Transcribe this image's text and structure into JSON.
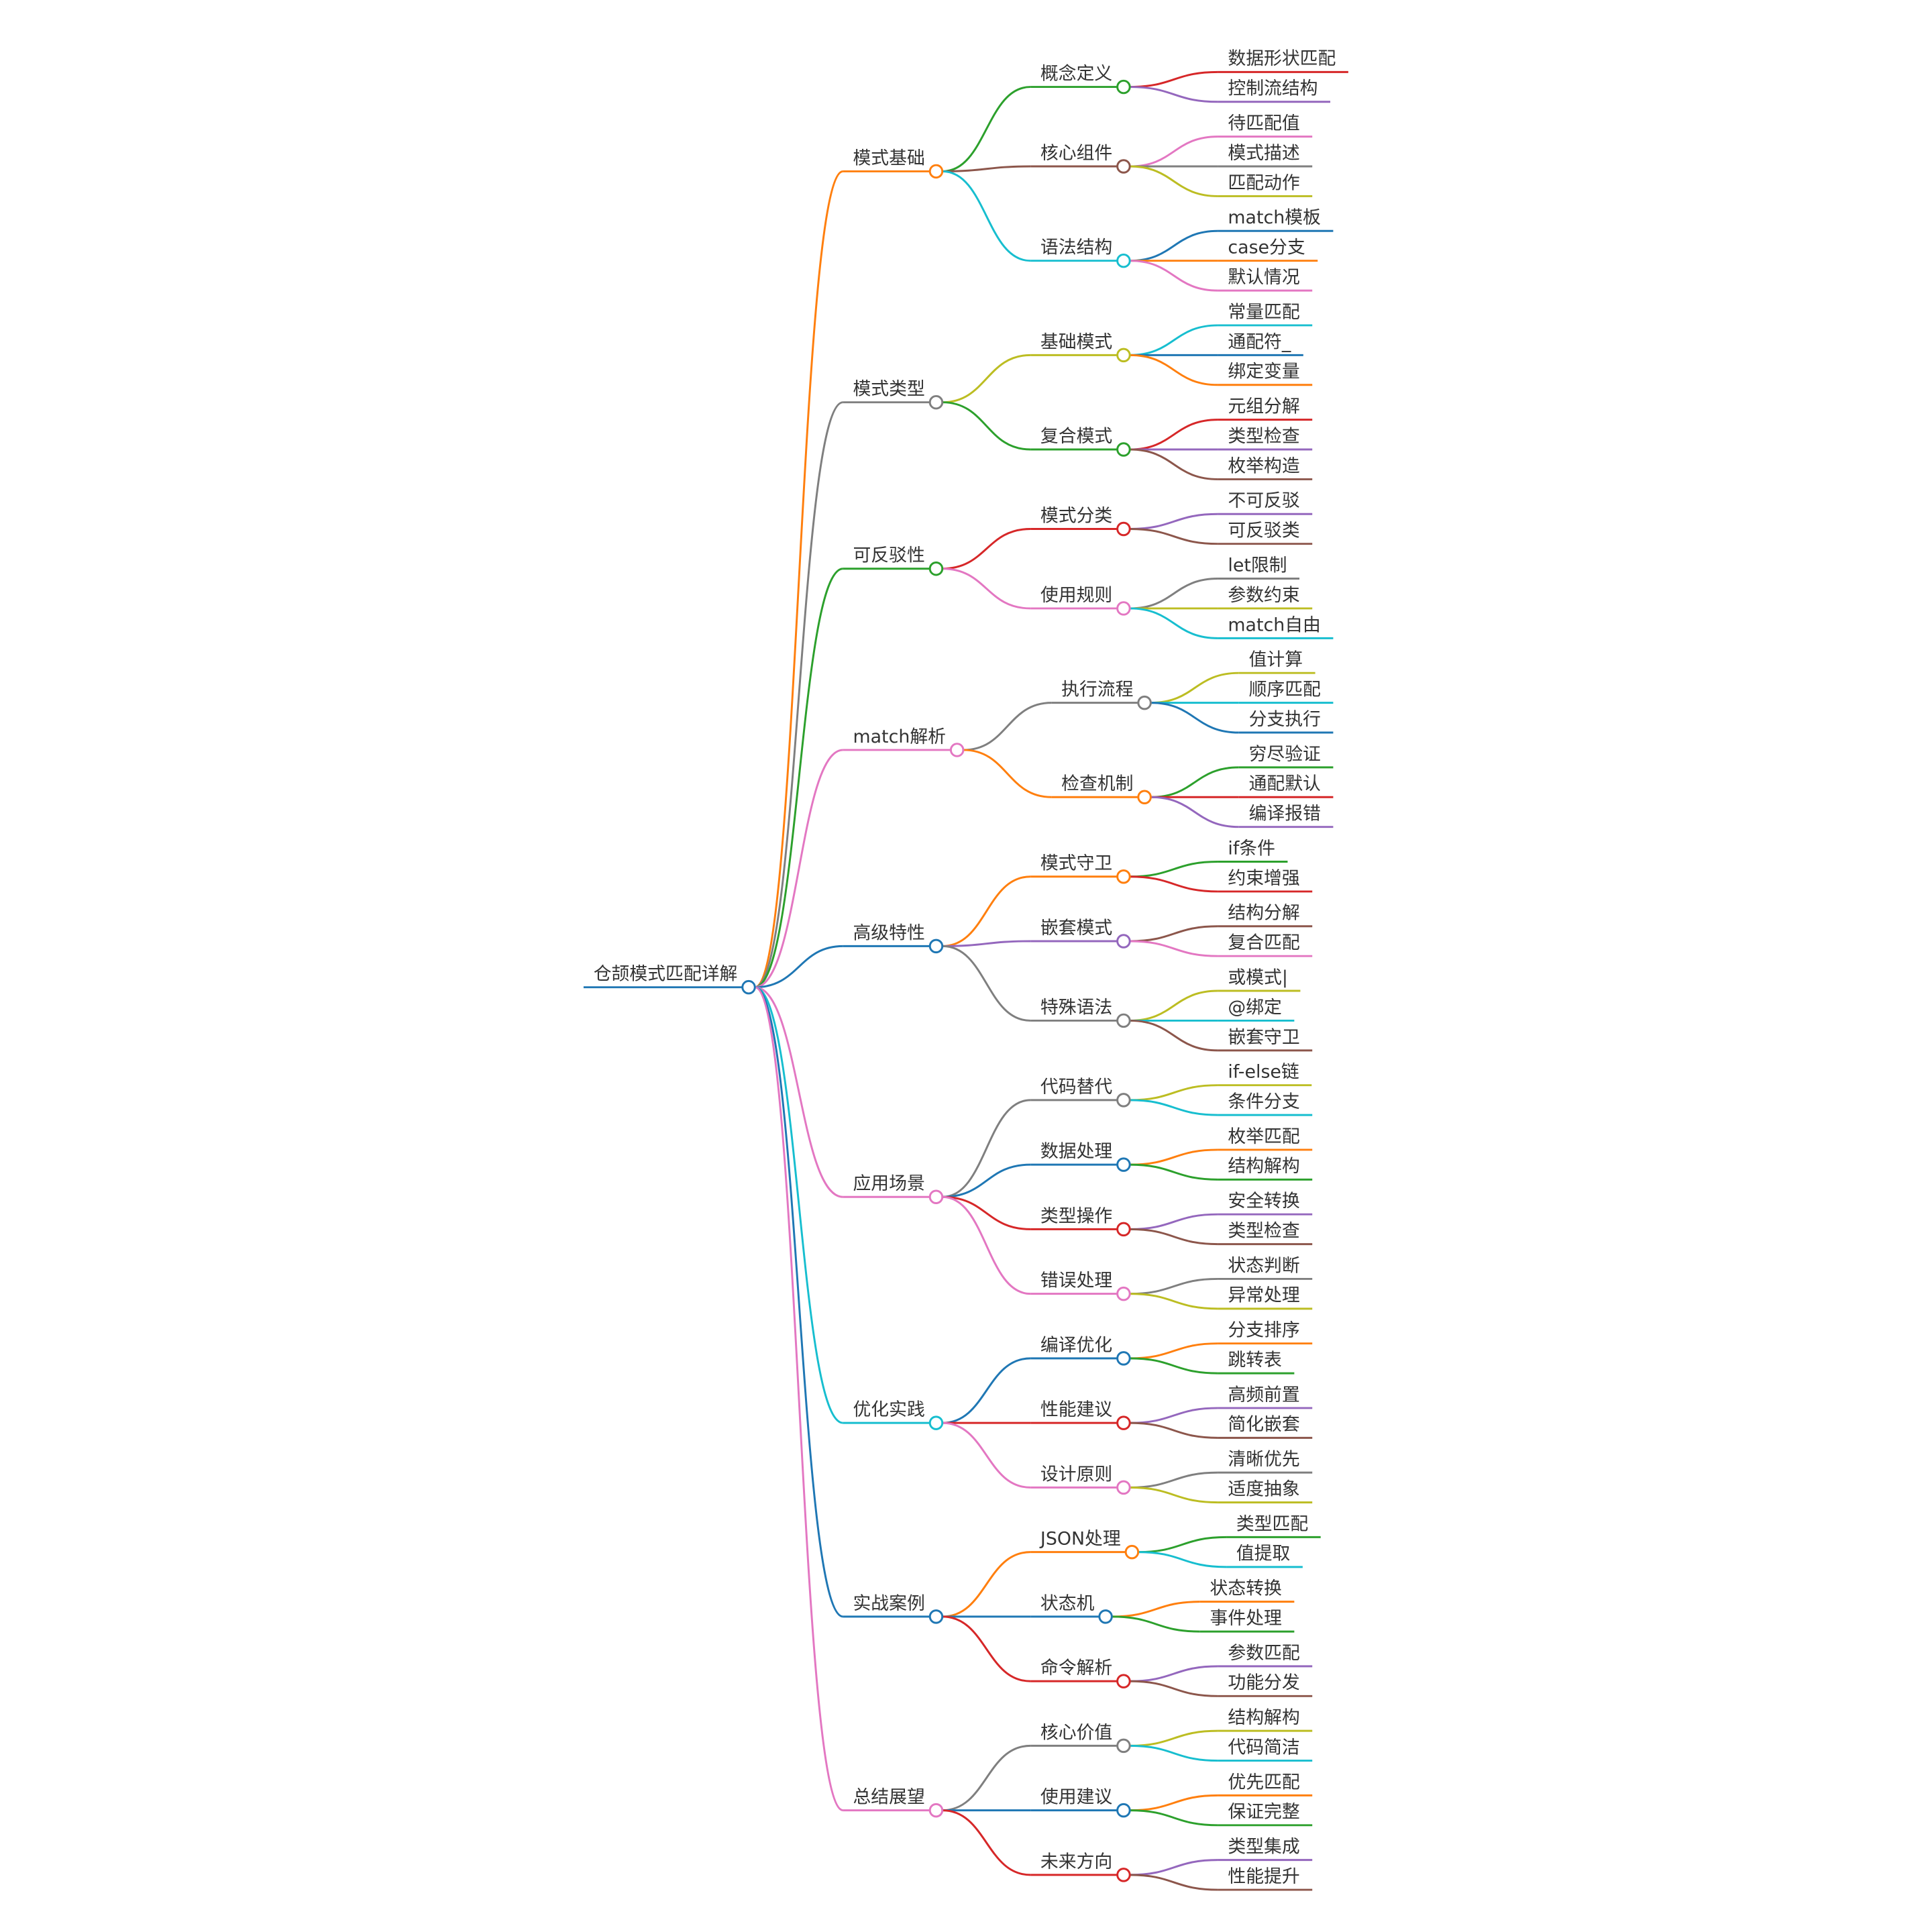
{
  "root": {
    "label": "仓颉模式匹配详解",
    "color": "#1f77b4",
    "children": [
      {
        "label": "模式基础",
        "color": "#ff7f0e",
        "children": [
          {
            "label": "概念定义",
            "color": "#2ca02c",
            "children": [
              {
                "label": "数据形状匹配",
                "color": "#d62728"
              },
              {
                "label": "控制流结构",
                "color": "#9467bd"
              }
            ]
          },
          {
            "label": "核心组件",
            "color": "#8c564b",
            "children": [
              {
                "label": "待匹配值",
                "color": "#e377c2"
              },
              {
                "label": "模式描述",
                "color": "#7f7f7f"
              },
              {
                "label": "匹配动作",
                "color": "#bcbd22"
              }
            ]
          },
          {
            "label": "语法结构",
            "color": "#17becf",
            "children": [
              {
                "label": "match模板",
                "color": "#1f77b4"
              },
              {
                "label": "case分支",
                "color": "#ff7f0e"
              },
              {
                "label": "默认情况",
                "color": "#e377c2"
              }
            ]
          }
        ]
      },
      {
        "label": "模式类型",
        "color": "#7f7f7f",
        "children": [
          {
            "label": "基础模式",
            "color": "#bcbd22",
            "children": [
              {
                "label": "常量匹配",
                "color": "#17becf"
              },
              {
                "label": "通配符_",
                "color": "#1f77b4"
              },
              {
                "label": "绑定变量",
                "color": "#ff7f0e"
              }
            ]
          },
          {
            "label": "复合模式",
            "color": "#2ca02c",
            "children": [
              {
                "label": "元组分解",
                "color": "#d62728"
              },
              {
                "label": "类型检查",
                "color": "#9467bd"
              },
              {
                "label": "枚举构造",
                "color": "#8c564b"
              }
            ]
          }
        ]
      },
      {
        "label": "可反驳性",
        "color": "#2ca02c",
        "children": [
          {
            "label": "模式分类",
            "color": "#d62728",
            "children": [
              {
                "label": "不可反驳",
                "color": "#9467bd"
              },
              {
                "label": "可反驳类",
                "color": "#8c564b"
              }
            ]
          },
          {
            "label": "使用规则",
            "color": "#e377c2",
            "children": [
              {
                "label": "let限制",
                "color": "#7f7f7f"
              },
              {
                "label": "参数约束",
                "color": "#bcbd22"
              },
              {
                "label": "match自由",
                "color": "#17becf"
              }
            ]
          }
        ]
      },
      {
        "label": "match解析",
        "color": "#e377c2",
        "children": [
          {
            "label": "执行流程",
            "color": "#7f7f7f",
            "children": [
              {
                "label": "值计算",
                "color": "#bcbd22"
              },
              {
                "label": "顺序匹配",
                "color": "#17becf"
              },
              {
                "label": "分支执行",
                "color": "#1f77b4"
              }
            ]
          },
          {
            "label": "检查机制",
            "color": "#ff7f0e",
            "children": [
              {
                "label": "穷尽验证",
                "color": "#2ca02c"
              },
              {
                "label": "通配默认",
                "color": "#d62728"
              },
              {
                "label": "编译报错",
                "color": "#9467bd"
              }
            ]
          }
        ]
      },
      {
        "label": "高级特性",
        "color": "#1f77b4",
        "children": [
          {
            "label": "模式守卫",
            "color": "#ff7f0e",
            "children": [
              {
                "label": "if条件",
                "color": "#2ca02c"
              },
              {
                "label": "约束增强",
                "color": "#d62728"
              }
            ]
          },
          {
            "label": "嵌套模式",
            "color": "#9467bd",
            "children": [
              {
                "label": "结构分解",
                "color": "#8c564b"
              },
              {
                "label": "复合匹配",
                "color": "#e377c2"
              }
            ]
          },
          {
            "label": "特殊语法",
            "color": "#7f7f7f",
            "children": [
              {
                "label": "或模式|",
                "color": "#bcbd22"
              },
              {
                "label": "@绑定",
                "color": "#17becf"
              },
              {
                "label": "嵌套守卫",
                "color": "#8c564b"
              }
            ]
          }
        ]
      },
      {
        "label": "应用场景",
        "color": "#e377c2",
        "children": [
          {
            "label": "代码替代",
            "color": "#7f7f7f",
            "children": [
              {
                "label": "if-else链",
                "color": "#bcbd22"
              },
              {
                "label": "条件分支",
                "color": "#17becf"
              }
            ]
          },
          {
            "label": "数据处理",
            "color": "#1f77b4",
            "children": [
              {
                "label": "枚举匹配",
                "color": "#ff7f0e"
              },
              {
                "label": "结构解构",
                "color": "#2ca02c"
              }
            ]
          },
          {
            "label": "类型操作",
            "color": "#d62728",
            "children": [
              {
                "label": "安全转换",
                "color": "#9467bd"
              },
              {
                "label": "类型检查",
                "color": "#8c564b"
              }
            ]
          },
          {
            "label": "错误处理",
            "color": "#e377c2",
            "children": [
              {
                "label": "状态判断",
                "color": "#7f7f7f"
              },
              {
                "label": "异常处理",
                "color": "#bcbd22"
              }
            ]
          }
        ]
      },
      {
        "label": "优化实践",
        "color": "#17becf",
        "children": [
          {
            "label": "编译优化",
            "color": "#1f77b4",
            "children": [
              {
                "label": "分支排序",
                "color": "#ff7f0e"
              },
              {
                "label": "跳转表",
                "color": "#2ca02c"
              }
            ]
          },
          {
            "label": "性能建议",
            "color": "#d62728",
            "children": [
              {
                "label": "高频前置",
                "color": "#9467bd"
              },
              {
                "label": "简化嵌套",
                "color": "#8c564b"
              }
            ]
          },
          {
            "label": "设计原则",
            "color": "#e377c2",
            "children": [
              {
                "label": "清晰优先",
                "color": "#7f7f7f"
              },
              {
                "label": "适度抽象",
                "color": "#bcbd22"
              }
            ]
          }
        ]
      },
      {
        "label": "实战案例",
        "color": "#1f77b4",
        "children": [
          {
            "label": "JSON处理",
            "color": "#ff7f0e",
            "children": [
              {
                "label": "类型匹配",
                "color": "#2ca02c"
              },
              {
                "label": "值提取",
                "color": "#17becf"
              }
            ]
          },
          {
            "label": "状态机",
            "color": "#1f77b4",
            "children": [
              {
                "label": "状态转换",
                "color": "#ff7f0e"
              },
              {
                "label": "事件处理",
                "color": "#2ca02c"
              }
            ]
          },
          {
            "label": "命令解析",
            "color": "#d62728",
            "children": [
              {
                "label": "参数匹配",
                "color": "#9467bd"
              },
              {
                "label": "功能分发",
                "color": "#8c564b"
              }
            ]
          }
        ]
      },
      {
        "label": "总结展望",
        "color": "#e377c2",
        "children": [
          {
            "label": "核心价值",
            "color": "#7f7f7f",
            "children": [
              {
                "label": "结构解构",
                "color": "#bcbd22"
              },
              {
                "label": "代码简洁",
                "color": "#17becf"
              }
            ]
          },
          {
            "label": "使用建议",
            "color": "#1f77b4",
            "children": [
              {
                "label": "优先匹配",
                "color": "#ff7f0e"
              },
              {
                "label": "保证完整",
                "color": "#2ca02c"
              }
            ]
          },
          {
            "label": "未来方向",
            "color": "#d62728",
            "children": [
              {
                "label": "类型集成",
                "color": "#9467bd"
              },
              {
                "label": "性能提升",
                "color": "#8c564b"
              }
            ]
          }
        ]
      }
    ]
  }
}
